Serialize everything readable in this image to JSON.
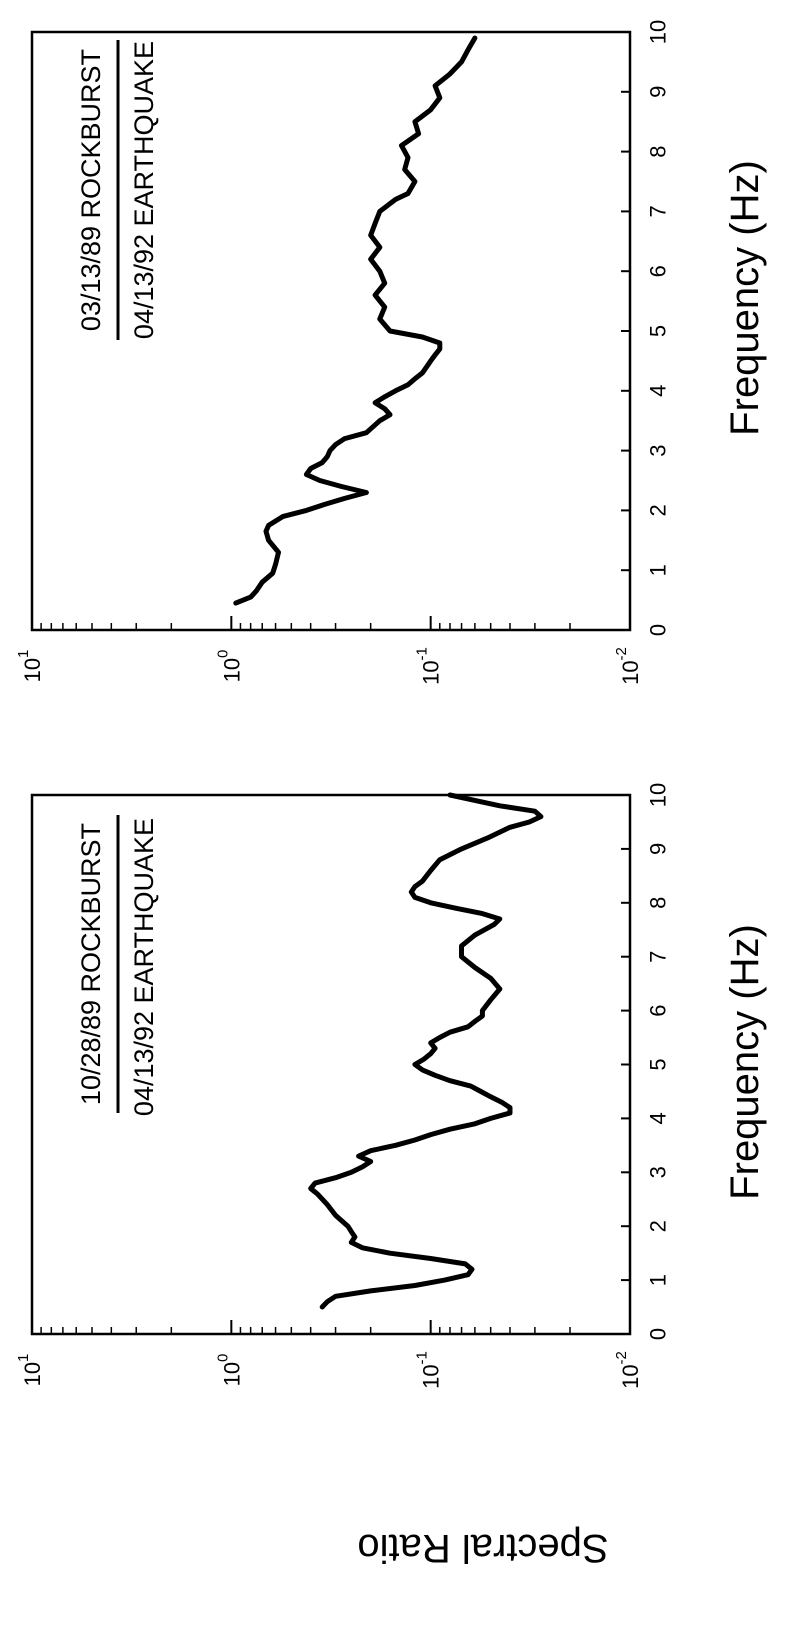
{
  "figure": {
    "ylabel": "Spectral Ratio"
  },
  "chart_data": [
    {
      "type": "line",
      "title": "",
      "label_top": "10/28/89 ROCKBURST",
      "label_bottom": "04/13/92 EARTHQUAKE",
      "xlabel": "Frequency (Hz)",
      "ylabel": "Spectral Ratio",
      "xlim": [
        0,
        10
      ],
      "ylim": [
        0.01,
        10
      ],
      "yscale": "log",
      "grid": false,
      "xticks": [
        "0",
        "1",
        "2",
        "3",
        "4",
        "5",
        "6",
        "7",
        "8",
        "9",
        "10"
      ],
      "yticks": [
        {
          "base": "10",
          "exp": "1"
        },
        {
          "base": "10",
          "exp": "0"
        },
        {
          "base": "10",
          "exp": "-1"
        },
        {
          "base": "10",
          "exp": "-2"
        }
      ],
      "series": [
        {
          "color": "#000000",
          "x": [
            0.5,
            0.6,
            0.7,
            0.8,
            0.9,
            1.0,
            1.1,
            1.2,
            1.3,
            1.4,
            1.5,
            1.6,
            1.7,
            1.8,
            1.9,
            2.0,
            2.2,
            2.4,
            2.6,
            2.7,
            2.8,
            2.9,
            3.0,
            3.1,
            3.2,
            3.3,
            3.4,
            3.5,
            3.6,
            3.7,
            3.8,
            3.9,
            4.0,
            4.1,
            4.2,
            4.3,
            4.4,
            4.5,
            4.6,
            4.7,
            4.8,
            4.9,
            5.0,
            5.1,
            5.2,
            5.3,
            5.4,
            5.5,
            5.6,
            5.7,
            5.8,
            5.9,
            6.0,
            6.2,
            6.4,
            6.6,
            6.8,
            7.0,
            7.2,
            7.4,
            7.6,
            7.7,
            7.8,
            7.9,
            8.0,
            8.1,
            8.2,
            8.3,
            8.4,
            8.6,
            8.8,
            9.0,
            9.2,
            9.4,
            9.5,
            9.6,
            9.7,
            9.8,
            9.9,
            10.0
          ],
          "values": [
            0.35,
            0.33,
            0.3,
            0.2,
            0.12,
            0.085,
            0.065,
            0.062,
            0.067,
            0.1,
            0.16,
            0.22,
            0.25,
            0.24,
            0.25,
            0.26,
            0.3,
            0.33,
            0.37,
            0.4,
            0.38,
            0.3,
            0.25,
            0.22,
            0.2,
            0.23,
            0.2,
            0.15,
            0.12,
            0.1,
            0.08,
            0.06,
            0.05,
            0.04,
            0.04,
            0.044,
            0.05,
            0.056,
            0.063,
            0.08,
            0.095,
            0.11,
            0.12,
            0.108,
            0.1,
            0.095,
            0.1,
            0.09,
            0.08,
            0.065,
            0.06,
            0.055,
            0.055,
            0.05,
            0.045,
            0.05,
            0.06,
            0.07,
            0.07,
            0.06,
            0.048,
            0.045,
            0.055,
            0.075,
            0.1,
            0.12,
            0.125,
            0.12,
            0.11,
            0.1,
            0.09,
            0.07,
            0.052,
            0.04,
            0.032,
            0.028,
            0.03,
            0.045,
            0.06,
            0.08
          ]
        }
      ]
    },
    {
      "type": "line",
      "title": "",
      "label_top": "03/13/89 ROCKBURST",
      "label_bottom": "04/13/92 EARTHQUAKE",
      "xlabel": "Frequency (Hz)",
      "ylabel": "",
      "xlim": [
        0,
        10
      ],
      "ylim": [
        0.01,
        10
      ],
      "yscale": "log",
      "grid": false,
      "xticks": [
        "0",
        "1",
        "2",
        "3",
        "4",
        "5",
        "6",
        "7",
        "8",
        "9",
        "10"
      ],
      "yticks": [
        {
          "base": "10",
          "exp": "1"
        },
        {
          "base": "10",
          "exp": "0"
        },
        {
          "base": "10",
          "exp": "-1"
        },
        {
          "base": "10",
          "exp": "-2"
        }
      ],
      "series": [
        {
          "color": "#000000",
          "x": [
            0.45,
            0.55,
            0.65,
            0.8,
            0.95,
            1.1,
            1.3,
            1.5,
            1.65,
            1.75,
            1.9,
            2.0,
            2.1,
            2.2,
            2.3,
            2.4,
            2.5,
            2.6,
            2.7,
            2.8,
            2.9,
            3.0,
            3.1,
            3.2,
            3.3,
            3.5,
            3.6,
            3.7,
            3.8,
            3.9,
            4.0,
            4.1,
            4.2,
            4.3,
            4.5,
            4.6,
            4.7,
            4.8,
            4.9,
            5.0,
            5.2,
            5.4,
            5.6,
            5.8,
            6.0,
            6.2,
            6.4,
            6.6,
            6.8,
            7.0,
            7.2,
            7.3,
            7.5,
            7.7,
            7.9,
            8.1,
            8.3,
            8.5,
            8.7,
            8.9,
            9.1,
            9.3,
            9.5,
            9.7,
            9.9
          ],
          "values": [
            0.95,
            0.8,
            0.75,
            0.7,
            0.62,
            0.6,
            0.58,
            0.65,
            0.67,
            0.65,
            0.55,
            0.42,
            0.34,
            0.27,
            0.21,
            0.28,
            0.36,
            0.42,
            0.4,
            0.35,
            0.33,
            0.32,
            0.3,
            0.27,
            0.21,
            0.18,
            0.16,
            0.17,
            0.19,
            0.17,
            0.15,
            0.13,
            0.12,
            0.11,
            0.1,
            0.095,
            0.09,
            0.09,
            0.11,
            0.16,
            0.18,
            0.17,
            0.19,
            0.17,
            0.18,
            0.2,
            0.18,
            0.2,
            0.19,
            0.18,
            0.15,
            0.13,
            0.12,
            0.135,
            0.13,
            0.14,
            0.115,
            0.12,
            0.1,
            0.09,
            0.095,
            0.08,
            0.07,
            0.065,
            0.06
          ]
        }
      ]
    }
  ]
}
